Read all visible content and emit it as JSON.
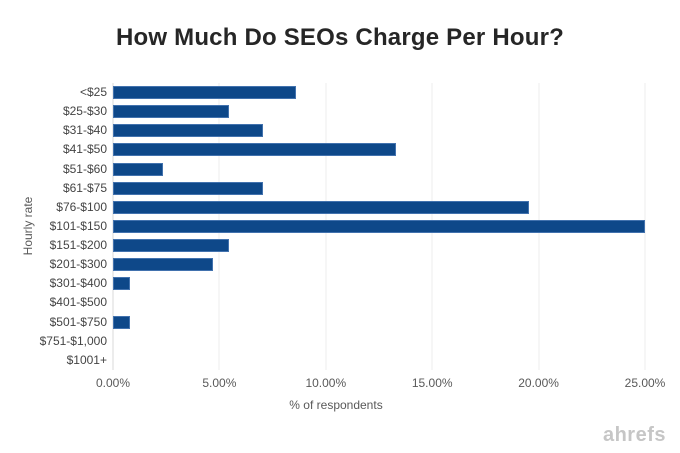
{
  "chart_data": {
    "type": "bar",
    "orientation": "horizontal",
    "title": "How Much Do SEOs Charge Per Hour?",
    "categories": [
      "<$25",
      "$25-$30",
      "$31-$40",
      "$41-$50",
      "$51-$60",
      "$61-$75",
      "$76-$100",
      "$101-$150",
      "$151-$200",
      "$201-$300",
      "$301-$400",
      "$401-$500",
      "$501-$750",
      "$751-$1,000",
      "$1001+"
    ],
    "values": [
      8.59,
      5.47,
      7.03,
      13.28,
      2.34,
      7.03,
      19.53,
      25.0,
      5.47,
      4.69,
      0.78,
      0,
      0.78,
      0,
      0
    ],
    "xlabel": "% of respondents",
    "ylabel": "Hourly rate",
    "xlim": [
      0,
      25
    ],
    "xticks": [
      0,
      5,
      10,
      15,
      20,
      25
    ],
    "xtick_labels": [
      "0.00%",
      "5.00%",
      "10.00%",
      "15.00%",
      "20.00%",
      "25.00%"
    ],
    "grid": "vertical-only",
    "legend": false
  },
  "watermark": "ahrefs",
  "colors": {
    "bar_fill": "#0E4889",
    "bar_border": "#4272AE",
    "gridline": "#ECECEC",
    "axis_line": "#D9D9D9",
    "title_text": "#262626",
    "category_text": "#444444",
    "tick_text": "#595959",
    "axis_title_text": "#595959",
    "watermark_text": "#C6C6C6"
  }
}
